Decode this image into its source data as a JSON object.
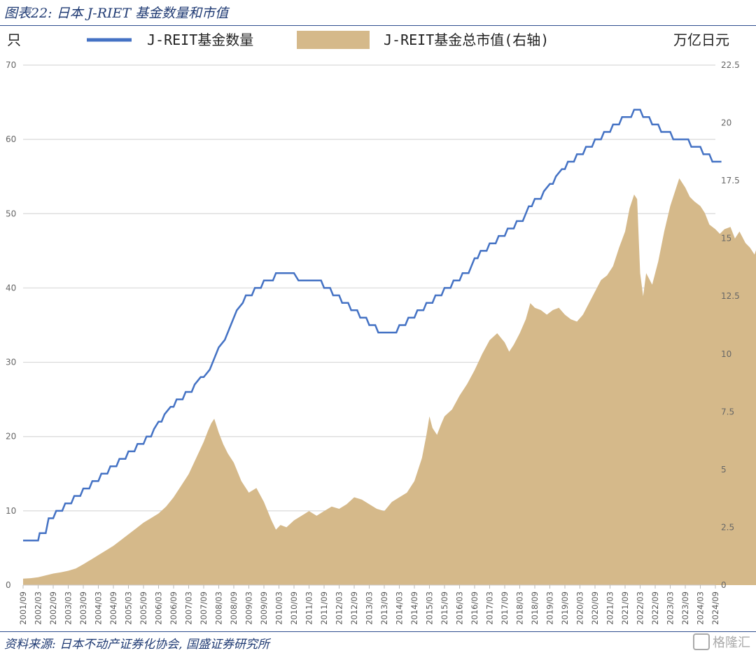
{
  "figure": {
    "title": "图表22:  日本 J-RIET 基金数量和市值",
    "source": "资料来源:  日本不动产证券化协会,  国盛证券研究所",
    "watermark": "格隆汇"
  },
  "chart_data": {
    "type": "line+area",
    "left_unit": "只",
    "right_unit": "万亿日元",
    "legend_position": "top",
    "grid": true,
    "colors": {
      "line": "#4472c4",
      "area": "#d5b98a",
      "grid": "#d9d9d9"
    },
    "y_left": {
      "min": 0,
      "max": 70,
      "ticks": [
        0,
        10,
        20,
        30,
        40,
        50,
        60,
        70
      ]
    },
    "y_right": {
      "min": 0,
      "max": 22.5,
      "ticks": [
        "0",
        "2.5",
        "5",
        "7.5",
        "10",
        "12.5",
        "15",
        "17.5",
        "20",
        "22.5"
      ]
    },
    "x_ticks": [
      "2001/09",
      "2002/03",
      "2002/09",
      "2003/03",
      "2003/09",
      "2004/03",
      "2004/09",
      "2005/03",
      "2005/09",
      "2006/03",
      "2006/09",
      "2007/03",
      "2007/09",
      "2008/03",
      "2008/09",
      "2009/03",
      "2009/09",
      "2010/03",
      "2010/09",
      "2011/03",
      "2011/09",
      "2012/03",
      "2012/09",
      "2013/03",
      "2013/09",
      "2014/03",
      "2014/09",
      "2015/03",
      "2015/09",
      "2016/03",
      "2016/09",
      "2017/03",
      "2017/09",
      "2018/03",
      "2018/09",
      "2019/03",
      "2019/09",
      "2020/03",
      "2020/09",
      "2021/03",
      "2021/09",
      "2022/03",
      "2022/09",
      "2023/03",
      "2023/09",
      "2024/03",
      "2024/09"
    ],
    "series": [
      {
        "name": "J-REIT基金数量",
        "type": "line",
        "axis": "left",
        "points": [
          [
            0,
            6
          ],
          [
            1,
            6
          ],
          [
            1.1,
            7
          ],
          [
            1.5,
            7
          ],
          [
            1.7,
            9
          ],
          [
            2,
            9
          ],
          [
            2.2,
            10
          ],
          [
            2.6,
            10
          ],
          [
            2.8,
            11
          ],
          [
            3.2,
            11
          ],
          [
            3.4,
            12
          ],
          [
            3.8,
            12
          ],
          [
            4,
            13
          ],
          [
            4.4,
            13
          ],
          [
            4.6,
            14
          ],
          [
            5,
            14
          ],
          [
            5.2,
            15
          ],
          [
            5.6,
            15
          ],
          [
            5.8,
            16
          ],
          [
            6.2,
            16
          ],
          [
            6.4,
            17
          ],
          [
            6.8,
            17
          ],
          [
            7,
            18
          ],
          [
            7.4,
            18
          ],
          [
            7.6,
            19
          ],
          [
            8,
            19
          ],
          [
            8.2,
            20
          ],
          [
            8.5,
            20
          ],
          [
            8.7,
            21
          ],
          [
            9,
            22
          ],
          [
            9.2,
            22
          ],
          [
            9.4,
            23
          ],
          [
            9.8,
            24
          ],
          [
            10,
            24
          ],
          [
            10.2,
            25
          ],
          [
            10.6,
            25
          ],
          [
            10.8,
            26
          ],
          [
            11.2,
            26
          ],
          [
            11.4,
            27
          ],
          [
            11.8,
            28
          ],
          [
            12,
            28
          ],
          [
            12.4,
            29
          ],
          [
            12.6,
            30
          ],
          [
            12.8,
            31
          ],
          [
            13,
            32
          ],
          [
            13.4,
            33
          ],
          [
            13.6,
            34
          ],
          [
            13.8,
            35
          ],
          [
            14,
            36
          ],
          [
            14.2,
            37
          ],
          [
            14.6,
            38
          ],
          [
            14.8,
            39
          ],
          [
            15.2,
            39
          ],
          [
            15.4,
            40
          ],
          [
            15.8,
            40
          ],
          [
            16,
            41
          ],
          [
            16.6,
            41
          ],
          [
            16.8,
            42
          ],
          [
            17.4,
            42
          ],
          [
            17.6,
            42
          ],
          [
            18,
            42
          ],
          [
            18.3,
            41
          ],
          [
            18.8,
            41
          ],
          [
            19.2,
            41
          ],
          [
            19.8,
            41
          ],
          [
            20,
            40
          ],
          [
            20.4,
            40
          ],
          [
            20.6,
            39
          ],
          [
            21,
            39
          ],
          [
            21.2,
            38
          ],
          [
            21.6,
            38
          ],
          [
            21.8,
            37
          ],
          [
            22.2,
            37
          ],
          [
            22.4,
            36
          ],
          [
            22.8,
            36
          ],
          [
            23,
            35
          ],
          [
            23.4,
            35
          ],
          [
            23.6,
            34
          ],
          [
            24.2,
            34
          ],
          [
            24.4,
            34
          ],
          [
            24.8,
            34
          ],
          [
            25,
            35
          ],
          [
            25.4,
            35
          ],
          [
            25.6,
            36
          ],
          [
            26,
            36
          ],
          [
            26.2,
            37
          ],
          [
            26.6,
            37
          ],
          [
            26.8,
            38
          ],
          [
            27.2,
            38
          ],
          [
            27.4,
            39
          ],
          [
            27.8,
            39
          ],
          [
            28,
            40
          ],
          [
            28.4,
            40
          ],
          [
            28.6,
            41
          ],
          [
            29,
            41
          ],
          [
            29.2,
            42
          ],
          [
            29.6,
            42
          ],
          [
            29.8,
            43
          ],
          [
            30,
            44
          ],
          [
            30.2,
            44
          ],
          [
            30.4,
            45
          ],
          [
            30.8,
            45
          ],
          [
            31,
            46
          ],
          [
            31.4,
            46
          ],
          [
            31.6,
            47
          ],
          [
            32,
            47
          ],
          [
            32.2,
            48
          ],
          [
            32.6,
            48
          ],
          [
            32.8,
            49
          ],
          [
            33.2,
            49
          ],
          [
            33.4,
            50
          ],
          [
            33.6,
            51
          ],
          [
            33.8,
            51
          ],
          [
            34,
            52
          ],
          [
            34.4,
            52
          ],
          [
            34.6,
            53
          ],
          [
            35,
            54
          ],
          [
            35.2,
            54
          ],
          [
            35.4,
            55
          ],
          [
            35.8,
            56
          ],
          [
            36,
            56
          ],
          [
            36.2,
            57
          ],
          [
            36.6,
            57
          ],
          [
            36.8,
            58
          ],
          [
            37.2,
            58
          ],
          [
            37.4,
            59
          ],
          [
            37.8,
            59
          ],
          [
            38,
            60
          ],
          [
            38.4,
            60
          ],
          [
            38.6,
            61
          ],
          [
            39,
            61
          ],
          [
            39.2,
            62
          ],
          [
            39.6,
            62
          ],
          [
            39.8,
            63
          ],
          [
            40.2,
            63
          ],
          [
            40.4,
            63
          ],
          [
            40.6,
            64
          ],
          [
            41,
            64
          ],
          [
            41.2,
            63
          ],
          [
            41.6,
            63
          ],
          [
            41.8,
            62
          ],
          [
            42.2,
            62
          ],
          [
            42.4,
            61
          ],
          [
            43,
            61
          ],
          [
            43.2,
            60
          ],
          [
            43.6,
            60
          ],
          [
            43.8,
            60
          ],
          [
            44.2,
            60
          ],
          [
            44.4,
            59
          ],
          [
            45,
            59
          ],
          [
            45.2,
            58
          ],
          [
            45.6,
            58
          ],
          [
            45.8,
            57
          ],
          [
            46.2,
            57
          ],
          [
            46.4,
            57
          ]
        ]
      },
      {
        "name": "J-REIT基金总市值(右轴)",
        "type": "area",
        "axis": "right",
        "points": [
          [
            0,
            0.28
          ],
          [
            0.5,
            0.3
          ],
          [
            1,
            0.34
          ],
          [
            1.5,
            0.42
          ],
          [
            2,
            0.5
          ],
          [
            2.5,
            0.55
          ],
          [
            3,
            0.62
          ],
          [
            3.5,
            0.72
          ],
          [
            4,
            0.9
          ],
          [
            4.5,
            1.1
          ],
          [
            5,
            1.3
          ],
          [
            5.5,
            1.5
          ],
          [
            6,
            1.7
          ],
          [
            6.5,
            1.95
          ],
          [
            7,
            2.2
          ],
          [
            7.5,
            2.45
          ],
          [
            8,
            2.7
          ],
          [
            8.5,
            2.9
          ],
          [
            9,
            3.1
          ],
          [
            9.5,
            3.4
          ],
          [
            10,
            3.8
          ],
          [
            10.5,
            4.3
          ],
          [
            11,
            4.8
          ],
          [
            11.5,
            5.5
          ],
          [
            12,
            6.2
          ],
          [
            12.3,
            6.7
          ],
          [
            12.5,
            7.0
          ],
          [
            12.7,
            7.2
          ],
          [
            13,
            6.6
          ],
          [
            13.3,
            6.1
          ],
          [
            13.6,
            5.7
          ],
          [
            14,
            5.3
          ],
          [
            14.5,
            4.5
          ],
          [
            15,
            4.0
          ],
          [
            15.5,
            4.2
          ],
          [
            16,
            3.6
          ],
          [
            16.5,
            2.8
          ],
          [
            16.8,
            2.4
          ],
          [
            17.1,
            2.6
          ],
          [
            17.5,
            2.5
          ],
          [
            18,
            2.8
          ],
          [
            18.5,
            3.0
          ],
          [
            19,
            3.2
          ],
          [
            19.5,
            3.0
          ],
          [
            20,
            3.2
          ],
          [
            20.5,
            3.4
          ],
          [
            21,
            3.3
          ],
          [
            21.5,
            3.5
          ],
          [
            22,
            3.8
          ],
          [
            22.5,
            3.7
          ],
          [
            23,
            3.5
          ],
          [
            23.5,
            3.3
          ],
          [
            24,
            3.2
          ],
          [
            24.5,
            3.6
          ],
          [
            25,
            3.8
          ],
          [
            25.5,
            4.0
          ],
          [
            26,
            4.5
          ],
          [
            26.5,
            5.5
          ],
          [
            26.8,
            6.5
          ],
          [
            27,
            7.3
          ],
          [
            27.2,
            6.8
          ],
          [
            27.5,
            6.5
          ],
          [
            27.8,
            7.0
          ],
          [
            28,
            7.3
          ],
          [
            28.5,
            7.6
          ],
          [
            29,
            8.2
          ],
          [
            29.5,
            8.7
          ],
          [
            30,
            9.3
          ],
          [
            30.5,
            10.0
          ],
          [
            31,
            10.6
          ],
          [
            31.5,
            10.9
          ],
          [
            32,
            10.5
          ],
          [
            32.3,
            10.1
          ],
          [
            32.6,
            10.4
          ],
          [
            33,
            10.9
          ],
          [
            33.4,
            11.5
          ],
          [
            33.7,
            12.2
          ],
          [
            34,
            12.0
          ],
          [
            34.4,
            11.9
          ],
          [
            34.8,
            11.7
          ],
          [
            35.2,
            11.9
          ],
          [
            35.6,
            12.0
          ],
          [
            36,
            11.7
          ],
          [
            36.4,
            11.5
          ],
          [
            36.8,
            11.4
          ],
          [
            37.2,
            11.7
          ],
          [
            37.6,
            12.2
          ],
          [
            38,
            12.7
          ],
          [
            38.4,
            13.2
          ],
          [
            38.8,
            13.4
          ],
          [
            39.2,
            13.8
          ],
          [
            39.6,
            14.6
          ],
          [
            40,
            15.3
          ],
          [
            40.3,
            16.3
          ],
          [
            40.6,
            16.9
          ],
          [
            40.8,
            16.7
          ],
          [
            41,
            13.5
          ],
          [
            41.2,
            12.5
          ],
          [
            41.4,
            13.5
          ],
          [
            41.8,
            13.0
          ],
          [
            42.2,
            14.0
          ],
          [
            42.6,
            15.3
          ],
          [
            43,
            16.4
          ],
          [
            43.3,
            17.0
          ],
          [
            43.6,
            17.6
          ],
          [
            44,
            17.2
          ],
          [
            44.3,
            16.8
          ],
          [
            44.6,
            16.6
          ],
          [
            45,
            16.4
          ],
          [
            45.3,
            16.1
          ],
          [
            45.6,
            15.6
          ],
          [
            46,
            15.4
          ],
          [
            46.3,
            15.2
          ],
          [
            46.6,
            15.4
          ],
          [
            47,
            15.5
          ],
          [
            47.3,
            15.0
          ],
          [
            47.6,
            15.3
          ],
          [
            48,
            14.8
          ],
          [
            48.3,
            14.6
          ],
          [
            48.6,
            14.3
          ],
          [
            48.8,
            14.7
          ]
        ]
      }
    ]
  }
}
